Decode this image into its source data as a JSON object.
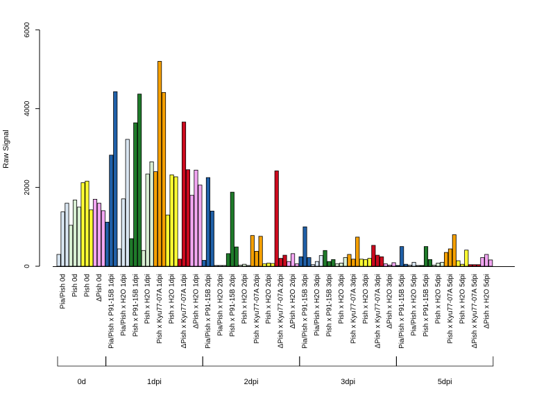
{
  "chart_data": {
    "type": "bar",
    "ylabel": "Raw Signal",
    "ylim": [
      0,
      6000
    ],
    "yticks": [
      "0",
      "2000",
      "4000",
      "6000"
    ],
    "grid": false,
    "legend": "none",
    "colors": {
      "Pia/Pish": "#d9e6f2",
      "Pish": "#d8eed4",
      "H2O": "#ffff33",
      "DeltaPish": "#f2a6f2",
      "P91-15B": "#2060a8",
      "Kyu77-07A": "#f5a000",
      "Kyu77_red": "#cc0a1e",
      "P91_green": "#1f7a2a",
      "Pish_light": "#d9efd3"
    },
    "categories": [
      "Pia/Pish 0d",
      "Pish 0d",
      "Pish 0d",
      "ΔPish 0d",
      "Pia/Pish x P91-15B 1dpi",
      "Pia/Pish x H2O 1dpi",
      "Pish x P91-15B 1dpi",
      "Pish x H2O 1dpi",
      "Pish x Kyu77-07A 1dpi",
      "Pish x H2O 1dpi",
      "ΔPish x Kyu77-07A 1dpi",
      "ΔPish x H2O 1dpi",
      "Pia/Pish x P91-15B 2dpi",
      "Pia/Pish x H2O 2dpi",
      "Pish x P91-15B 2dpi",
      "Pish x H2O 2dpi",
      "Pish x Kyu77-07A 2dpi",
      "Pish x H2O 2dpi",
      "ΔPish x Kyu77-07A 2dpi",
      "ΔPish x H2O 2dpi",
      "Pia/Pish x P91-15B 3dpi",
      "Pia/Pish x H2O 3dpi",
      "Pish x P91-15B 3dpi",
      "Pish x H2O 3dpi",
      "Pish x Kyu77-07A 3dpi",
      "Pish x H2O 3dpi",
      "ΔPish x Kyu77-07A 3dpi",
      "ΔPish x H2O 3dpi",
      "Pia/Pish x P91-15B 5dpi",
      "Pia/Pish x H2O 5dpi",
      "Pish x P91-15B 5dpi",
      "Pish x H2O 5dpi",
      "Pish x Kyu77-07A 5dpi",
      "Pish x H2O 5dpi",
      "ΔPish x Kyu77-07A 5dpi",
      "ΔPish x H2O 5dpi"
    ],
    "groups": [
      {
        "label": "0d",
        "start": 0,
        "end": 3
      },
      {
        "label": "1dpi",
        "start": 4,
        "end": 11
      },
      {
        "label": "2dpi",
        "start": 12,
        "end": 19
      },
      {
        "label": "3dpi",
        "start": 20,
        "end": 27
      },
      {
        "label": "5dpi",
        "start": 28,
        "end": 35
      }
    ],
    "bars": [
      {
        "cat": 0,
        "values": [
          300,
          1380,
          1600
        ],
        "colors": [
          "#d9e6f2",
          "#d9e6f2",
          "#d9e6f2"
        ]
      },
      {
        "cat": 1,
        "values": [
          1040,
          1680,
          1500
        ],
        "colors": [
          "#d9efd3",
          "#d9efd3",
          "#d9efd3"
        ]
      },
      {
        "cat": 2,
        "values": [
          2120,
          2160,
          1430
        ],
        "colors": [
          "#ffff33",
          "#ffff33",
          "#ffff33"
        ]
      },
      {
        "cat": 3,
        "values": [
          1700,
          1600,
          1410
        ],
        "colors": [
          "#f2a6f2",
          "#f2a6f2",
          "#f2a6f2"
        ]
      },
      {
        "cat": 4,
        "values": [
          1120,
          2820,
          4430
        ],
        "colors": [
          "#2060a8",
          "#2060a8",
          "#2060a8"
        ]
      },
      {
        "cat": 5,
        "values": [
          440,
          1710,
          3220
        ],
        "colors": [
          "#d9e6f2",
          "#d9e6f2",
          "#d9e6f2"
        ]
      },
      {
        "cat": 6,
        "values": [
          700,
          3640,
          4370
        ],
        "colors": [
          "#1f7a2a",
          "#1f7a2a",
          "#1f7a2a"
        ]
      },
      {
        "cat": 7,
        "values": [
          400,
          2340,
          2650
        ],
        "colors": [
          "#d9efd3",
          "#d9efd3",
          "#d9efd3"
        ]
      },
      {
        "cat": 8,
        "values": [
          2400,
          5200,
          4410
        ],
        "colors": [
          "#f5a000",
          "#f5a000",
          "#f5a000"
        ]
      },
      {
        "cat": 9,
        "values": [
          1300,
          2320,
          2270
        ],
        "colors": [
          "#ffff33",
          "#ffff33",
          "#ffff33"
        ]
      },
      {
        "cat": 10,
        "values": [
          180,
          3660,
          2450
        ],
        "colors": [
          "#cc0a1e",
          "#cc0a1e",
          "#cc0a1e"
        ]
      },
      {
        "cat": 11,
        "values": [
          1800,
          2440,
          2060
        ],
        "colors": [
          "#f2a6f2",
          "#f2a6f2",
          "#f2a6f2"
        ]
      },
      {
        "cat": 12,
        "values": [
          150,
          2250,
          1400
        ],
        "colors": [
          "#2060a8",
          "#2060a8",
          "#2060a8"
        ]
      },
      {
        "cat": 13,
        "values": [
          20,
          20,
          20
        ],
        "colors": [
          "#d9e6f2",
          "#d9e6f2",
          "#d9e6f2"
        ]
      },
      {
        "cat": 14,
        "values": [
          320,
          1880,
          490
        ],
        "colors": [
          "#1f7a2a",
          "#1f7a2a",
          "#1f7a2a"
        ]
      },
      {
        "cat": 15,
        "values": [
          30,
          50,
          20
        ],
        "colors": [
          "#d9efd3",
          "#d9efd3",
          "#d9efd3"
        ]
      },
      {
        "cat": 16,
        "values": [
          780,
          380,
          760
        ],
        "colors": [
          "#f5a000",
          "#f5a000",
          "#f5a000"
        ]
      },
      {
        "cat": 17,
        "values": [
          60,
          80,
          70
        ],
        "colors": [
          "#ffff33",
          "#ffff33",
          "#ffff33"
        ]
      },
      {
        "cat": 18,
        "values": [
          2420,
          200,
          280
        ],
        "colors": [
          "#cc0a1e",
          "#cc0a1e",
          "#cc0a1e"
        ]
      },
      {
        "cat": 19,
        "values": [
          120,
          320,
          60
        ],
        "colors": [
          "#f2a6f2",
          "#f2a6f2",
          "#f2a6f2"
        ]
      },
      {
        "cat": 20,
        "values": [
          240,
          1000,
          220
        ],
        "colors": [
          "#2060a8",
          "#2060a8",
          "#2060a8"
        ]
      },
      {
        "cat": 21,
        "values": [
          40,
          120,
          270
        ],
        "colors": [
          "#d9e6f2",
          "#d9e6f2",
          "#d9e6f2"
        ]
      },
      {
        "cat": 22,
        "values": [
          400,
          120,
          170
        ],
        "colors": [
          "#1f7a2a",
          "#1f7a2a",
          "#1f7a2a"
        ]
      },
      {
        "cat": 23,
        "values": [
          60,
          80,
          220
        ],
        "colors": [
          "#d9efd3",
          "#d9efd3",
          "#d9efd3"
        ]
      },
      {
        "cat": 24,
        "values": [
          300,
          180,
          740
        ],
        "colors": [
          "#f5a000",
          "#f5a000",
          "#f5a000"
        ]
      },
      {
        "cat": 25,
        "values": [
          180,
          170,
          200
        ],
        "colors": [
          "#ffff33",
          "#ffff33",
          "#ffff33"
        ]
      },
      {
        "cat": 26,
        "values": [
          530,
          280,
          240
        ],
        "colors": [
          "#cc0a1e",
          "#cc0a1e",
          "#cc0a1e"
        ]
      },
      {
        "cat": 27,
        "values": [
          60,
          30,
          90
        ],
        "colors": [
          "#f2a6f2",
          "#f2a6f2",
          "#f2a6f2"
        ]
      },
      {
        "cat": 28,
        "values": [
          20,
          500,
          50
        ],
        "colors": [
          "#2060a8",
          "#2060a8",
          "#2060a8"
        ]
      },
      {
        "cat": 29,
        "values": [
          30,
          100,
          20
        ],
        "colors": [
          "#d9e6f2",
          "#d9e6f2",
          "#d9e6f2"
        ]
      },
      {
        "cat": 30,
        "values": [
          20,
          500,
          170
        ],
        "colors": [
          "#1f7a2a",
          "#1f7a2a",
          "#1f7a2a"
        ]
      },
      {
        "cat": 31,
        "values": [
          30,
          80,
          100
        ],
        "colors": [
          "#d9efd3",
          "#d9efd3",
          "#d9efd3"
        ]
      },
      {
        "cat": 32,
        "values": [
          350,
          440,
          800
        ],
        "colors": [
          "#f5a000",
          "#f5a000",
          "#f5a000"
        ]
      },
      {
        "cat": 33,
        "values": [
          140,
          50,
          410
        ],
        "colors": [
          "#ffff33",
          "#ffff33",
          "#ffff33"
        ]
      },
      {
        "cat": 34,
        "values": [
          40,
          40,
          40
        ],
        "colors": [
          "#cc0a1e",
          "#cc0a1e",
          "#cc0a1e"
        ]
      },
      {
        "cat": 35,
        "values": [
          220,
          300,
          160
        ],
        "colors": [
          "#f2a6f2",
          "#f2a6f2",
          "#f2a6f2"
        ]
      }
    ]
  }
}
